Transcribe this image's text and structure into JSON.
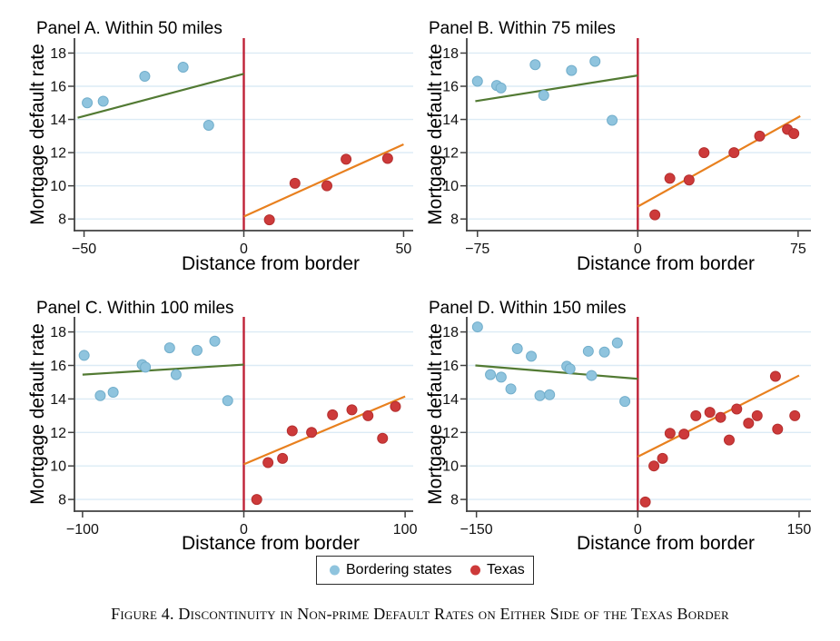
{
  "figure": {
    "caption": "Figure 4. Discontinuity in Non-prime Default Rates on Either Side of the Texas Border"
  },
  "legend": {
    "items": [
      {
        "label": "Bordering states",
        "color": "#8fc4de"
      },
      {
        "label": "Texas",
        "color": "#cd3a3a"
      }
    ]
  },
  "colors": {
    "bordering_marker": "#8fc4de",
    "bordering_marker_edge": "#72aecb",
    "texas_marker": "#cd3a3a",
    "texas_marker_edge": "#b52f2f",
    "bordering_fit_line": "#527a33",
    "texas_fit_line": "#e8801f",
    "border_vline": "#bf2237",
    "gridline": "#dcebf5",
    "axis": "#404040"
  },
  "chart_data": [
    {
      "type": "scatter",
      "title": "Panel A. Within 50 miles",
      "xlabel": "Distance from border",
      "ylabel": "Mortgage default rate",
      "xlim": [
        -53,
        53
      ],
      "ylim": [
        7.3,
        18.9
      ],
      "xticks": [
        -50,
        0,
        50
      ],
      "yticks": [
        8,
        10,
        12,
        14,
        16,
        18
      ],
      "vline_x": 0,
      "series": [
        {
          "name": "Bordering states",
          "points": [
            [
              -49,
              15.0
            ],
            [
              -44,
              15.1
            ],
            [
              -31,
              16.6
            ],
            [
              -19,
              17.15
            ],
            [
              -11,
              13.65
            ]
          ]
        },
        {
          "name": "Texas",
          "points": [
            [
              8,
              7.95
            ],
            [
              16,
              10.15
            ],
            [
              26,
              10.0
            ],
            [
              32,
              11.6
            ],
            [
              45,
              11.65
            ]
          ]
        }
      ],
      "fit_lines": [
        {
          "series": "Bordering states",
          "x1": -52,
          "y1": 14.1,
          "x2": 0,
          "y2": 16.75
        },
        {
          "series": "Texas",
          "x1": 0,
          "y1": 8.15,
          "x2": 50,
          "y2": 12.5
        }
      ]
    },
    {
      "type": "scatter",
      "title": "Panel B. Within 75 miles",
      "xlabel": "Distance from border",
      "ylabel": "Mortgage default rate",
      "xlim": [
        -80,
        81
      ],
      "ylim": [
        7.3,
        18.9
      ],
      "xticks": [
        -75,
        0,
        75
      ],
      "yticks": [
        8,
        10,
        12,
        14,
        16,
        18
      ],
      "vline_x": 0,
      "series": [
        {
          "name": "Bordering states",
          "points": [
            [
              -75,
              16.3
            ],
            [
              -66,
              16.05
            ],
            [
              -64,
              15.9
            ],
            [
              -48,
              17.3
            ],
            [
              -44,
              15.45
            ],
            [
              -31,
              16.95
            ],
            [
              -20,
              17.5
            ],
            [
              -12,
              13.95
            ]
          ]
        },
        {
          "name": "Texas",
          "points": [
            [
              8,
              8.25
            ],
            [
              15,
              10.45
            ],
            [
              24,
              10.35
            ],
            [
              31,
              12.0
            ],
            [
              45,
              12.0
            ],
            [
              57,
              13.0
            ],
            [
              70,
              13.4
            ],
            [
              73,
              13.15
            ]
          ]
        }
      ],
      "fit_lines": [
        {
          "series": "Bordering states",
          "x1": -76,
          "y1": 15.1,
          "x2": 0,
          "y2": 16.65
        },
        {
          "series": "Texas",
          "x1": 0,
          "y1": 8.75,
          "x2": 76,
          "y2": 14.2
        }
      ]
    },
    {
      "type": "scatter",
      "title": "Panel C. Within 100 miles",
      "xlabel": "Distance from border",
      "ylabel": "Mortgage default rate",
      "xlim": [
        -105,
        105
      ],
      "ylim": [
        7.3,
        18.9
      ],
      "xticks": [
        -100,
        0,
        100
      ],
      "yticks": [
        8,
        10,
        12,
        14,
        16,
        18
      ],
      "vline_x": 0,
      "series": [
        {
          "name": "Bordering states",
          "points": [
            [
              -99,
              16.6
            ],
            [
              -89,
              14.2
            ],
            [
              -81,
              14.4
            ],
            [
              -63,
              16.05
            ],
            [
              -61,
              15.9
            ],
            [
              -46,
              17.05
            ],
            [
              -42,
              15.45
            ],
            [
              -29,
              16.9
            ],
            [
              -18,
              17.45
            ],
            [
              -10,
              13.9
            ]
          ]
        },
        {
          "name": "Texas",
          "points": [
            [
              8,
              8.0
            ],
            [
              15,
              10.2
            ],
            [
              24,
              10.45
            ],
            [
              30,
              12.1
            ],
            [
              42,
              12.0
            ],
            [
              55,
              13.05
            ],
            [
              67,
              13.35
            ],
            [
              77,
              13.0
            ],
            [
              86,
              11.65
            ],
            [
              94,
              13.55
            ]
          ]
        }
      ],
      "fit_lines": [
        {
          "series": "Bordering states",
          "x1": -100,
          "y1": 15.45,
          "x2": 0,
          "y2": 16.05
        },
        {
          "series": "Texas",
          "x1": 0,
          "y1": 10.1,
          "x2": 100,
          "y2": 14.15
        }
      ]
    },
    {
      "type": "scatter",
      "title": "Panel D. Within 150 miles",
      "xlabel": "Distance from border",
      "ylabel": "Mortgage default rate",
      "xlim": [
        -159,
        161
      ],
      "ylim": [
        7.3,
        18.9
      ],
      "xticks": [
        -150,
        0,
        150
      ],
      "yticks": [
        8,
        10,
        12,
        14,
        16,
        18
      ],
      "vline_x": 0,
      "series": [
        {
          "name": "Bordering states",
          "points": [
            [
              -149,
              18.3
            ],
            [
              -137,
              15.45
            ],
            [
              -127,
              15.3
            ],
            [
              -118,
              14.6
            ],
            [
              -112,
              17.0
            ],
            [
              -99,
              16.55
            ],
            [
              -91,
              14.2
            ],
            [
              -82,
              14.25
            ],
            [
              -66,
              15.95
            ],
            [
              -63,
              15.8
            ],
            [
              -46,
              16.85
            ],
            [
              -43,
              15.4
            ],
            [
              -31,
              16.8
            ],
            [
              -19,
              17.35
            ],
            [
              -12,
              13.85
            ]
          ]
        },
        {
          "name": "Texas",
          "points": [
            [
              7,
              7.85
            ],
            [
              15,
              10.0
            ],
            [
              23,
              10.45
            ],
            [
              30,
              11.95
            ],
            [
              43,
              11.9
            ],
            [
              54,
              13.0
            ],
            [
              67,
              13.2
            ],
            [
              77,
              12.9
            ],
            [
              85,
              11.55
            ],
            [
              92,
              13.4
            ],
            [
              103,
              12.55
            ],
            [
              111,
              13.0
            ],
            [
              128,
              15.35
            ],
            [
              130,
              12.2
            ],
            [
              146,
              13.0
            ]
          ]
        }
      ],
      "fit_lines": [
        {
          "series": "Bordering states",
          "x1": -151,
          "y1": 16.0,
          "x2": 0,
          "y2": 15.2
        },
        {
          "series": "Texas",
          "x1": 0,
          "y1": 10.55,
          "x2": 150,
          "y2": 15.4
        }
      ]
    }
  ]
}
